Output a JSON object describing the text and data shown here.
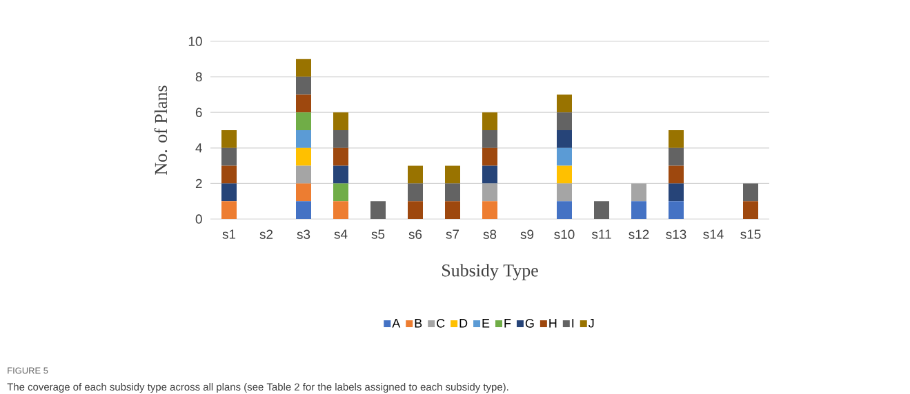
{
  "chart_data": {
    "type": "bar",
    "stacked": true,
    "xlabel": "Subsidy Type",
    "ylabel": "No. of Plans",
    "categories": [
      "s1",
      "s2",
      "s3",
      "s4",
      "s5",
      "s6",
      "s7",
      "s8",
      "s9",
      "s10",
      "s11",
      "s12",
      "s13",
      "s14",
      "s15"
    ],
    "series": [
      {
        "name": "A",
        "color": "#4472c4",
        "values": [
          0,
          0,
          1,
          0,
          0,
          0,
          0,
          0,
          0,
          1,
          0,
          1,
          1,
          0,
          0
        ]
      },
      {
        "name": "B",
        "color": "#ed7d31",
        "values": [
          1,
          0,
          1,
          1,
          0,
          0,
          0,
          1,
          0,
          0,
          0,
          0,
          0,
          0,
          0
        ]
      },
      {
        "name": "C",
        "color": "#a5a5a5",
        "values": [
          0,
          0,
          1,
          0,
          0,
          0,
          0,
          1,
          0,
          1,
          0,
          1,
          0,
          0,
          0
        ]
      },
      {
        "name": "D",
        "color": "#ffc000",
        "values": [
          0,
          0,
          1,
          0,
          0,
          0,
          0,
          0,
          0,
          1,
          0,
          0,
          0,
          0,
          0
        ]
      },
      {
        "name": "E",
        "color": "#5b9bd5",
        "values": [
          0,
          0,
          1,
          0,
          0,
          0,
          0,
          0,
          0,
          1,
          0,
          0,
          0,
          0,
          0
        ]
      },
      {
        "name": "F",
        "color": "#70ad47",
        "values": [
          0,
          0,
          1,
          1,
          0,
          0,
          0,
          0,
          0,
          0,
          0,
          0,
          0,
          0,
          0
        ]
      },
      {
        "name": "G",
        "color": "#264478",
        "values": [
          1,
          0,
          0,
          1,
          0,
          0,
          0,
          1,
          0,
          1,
          0,
          0,
          1,
          0,
          0
        ]
      },
      {
        "name": "H",
        "color": "#9e480e",
        "values": [
          1,
          0,
          1,
          1,
          0,
          1,
          1,
          1,
          0,
          0,
          0,
          0,
          1,
          0,
          1
        ]
      },
      {
        "name": "I",
        "color": "#636363",
        "values": [
          1,
          0,
          1,
          1,
          1,
          1,
          1,
          1,
          0,
          1,
          1,
          0,
          1,
          0,
          1
        ]
      },
      {
        "name": "J",
        "color": "#997300",
        "values": [
          1,
          0,
          1,
          1,
          0,
          1,
          1,
          1,
          0,
          1,
          0,
          0,
          1,
          0,
          0
        ]
      }
    ],
    "ylim": [
      0,
      10
    ],
    "yticks": [
      0,
      2,
      4,
      6,
      8,
      10
    ],
    "grid": "y",
    "legend": "bottom",
    "annotations": [
      "FIGURE 5",
      "The coverage of each subsidy type across all plans (see Table 2 for the labels assigned to each subsidy type)."
    ]
  }
}
